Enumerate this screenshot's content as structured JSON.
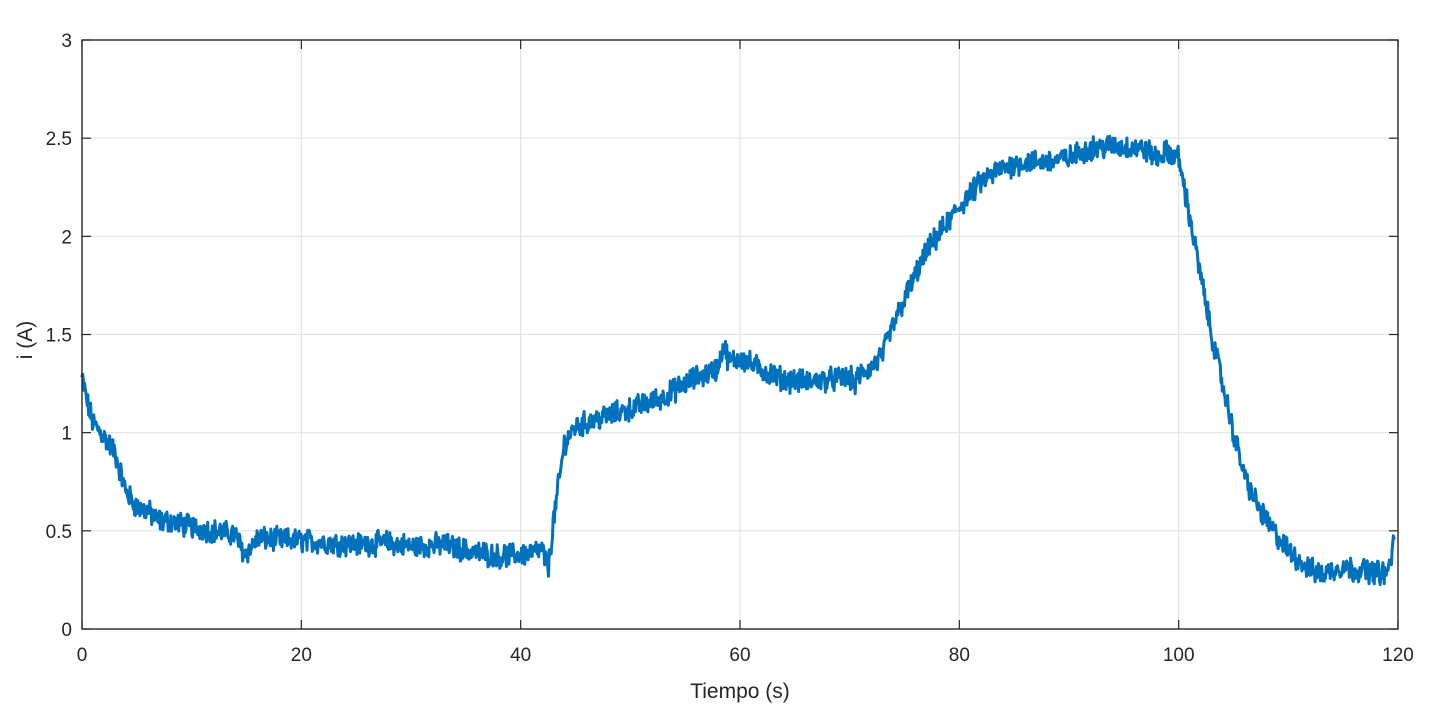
{
  "chart_data": {
    "type": "line",
    "title": "",
    "xlabel": "Tiempo (s)",
    "ylabel": "i (A)",
    "xlim": [
      0,
      120
    ],
    "ylim": [
      0,
      3
    ],
    "xticks": [
      0,
      20,
      40,
      60,
      80,
      100,
      120
    ],
    "yticks": [
      0,
      0.5,
      1,
      1.5,
      2,
      2.5,
      3
    ],
    "xtick_labels": [
      "0",
      "20",
      "40",
      "60",
      "80",
      "100",
      "120"
    ],
    "ytick_labels": [
      "0",
      "0.5",
      "1",
      "1.5",
      "2",
      "2.5",
      "3"
    ],
    "grid": true,
    "colors": {
      "series": "#0072BD",
      "axes": "#262626",
      "grid": "#e3e3e3"
    },
    "series": [
      {
        "name": "",
        "noise_amplitude": 0.05,
        "x": [
          0,
          0.5,
          1,
          2,
          3,
          4,
          5,
          6,
          7,
          8,
          10,
          12,
          14,
          14.8,
          15.5,
          16,
          20,
          25,
          28,
          30,
          33,
          35,
          38,
          40,
          42,
          42.5,
          43,
          43.5,
          44,
          45,
          47,
          50,
          53,
          55,
          56,
          57,
          58,
          58.5,
          59,
          60,
          62,
          64,
          66,
          68,
          70,
          70.5,
          71,
          72,
          73,
          74,
          75,
          76,
          77,
          78,
          80,
          82,
          84,
          86,
          88,
          90,
          92,
          94,
          96,
          97,
          98,
          99,
          100,
          101,
          102,
          103,
          104,
          105,
          106,
          107,
          108,
          109,
          110,
          111,
          112,
          113,
          114,
          115,
          116,
          117,
          118,
          119,
          119.7
        ],
        "y": [
          1.28,
          1.15,
          1.05,
          0.98,
          0.9,
          0.7,
          0.62,
          0.6,
          0.55,
          0.55,
          0.52,
          0.5,
          0.48,
          0.38,
          0.42,
          0.46,
          0.45,
          0.43,
          0.44,
          0.42,
          0.43,
          0.4,
          0.37,
          0.38,
          0.4,
          0.3,
          0.55,
          0.75,
          0.95,
          1.03,
          1.07,
          1.12,
          1.18,
          1.25,
          1.28,
          1.3,
          1.33,
          1.45,
          1.36,
          1.38,
          1.32,
          1.27,
          1.26,
          1.27,
          1.28,
          1.25,
          1.3,
          1.33,
          1.4,
          1.55,
          1.68,
          1.8,
          1.92,
          2.0,
          2.15,
          2.28,
          2.35,
          2.38,
          2.38,
          2.4,
          2.45,
          2.46,
          2.45,
          2.44,
          2.4,
          2.43,
          2.4,
          2.1,
          1.8,
          1.5,
          1.25,
          1.0,
          0.78,
          0.65,
          0.55,
          0.47,
          0.4,
          0.35,
          0.3,
          0.28,
          0.3,
          0.32,
          0.3,
          0.3,
          0.29,
          0.28,
          0.45
        ]
      }
    ]
  }
}
